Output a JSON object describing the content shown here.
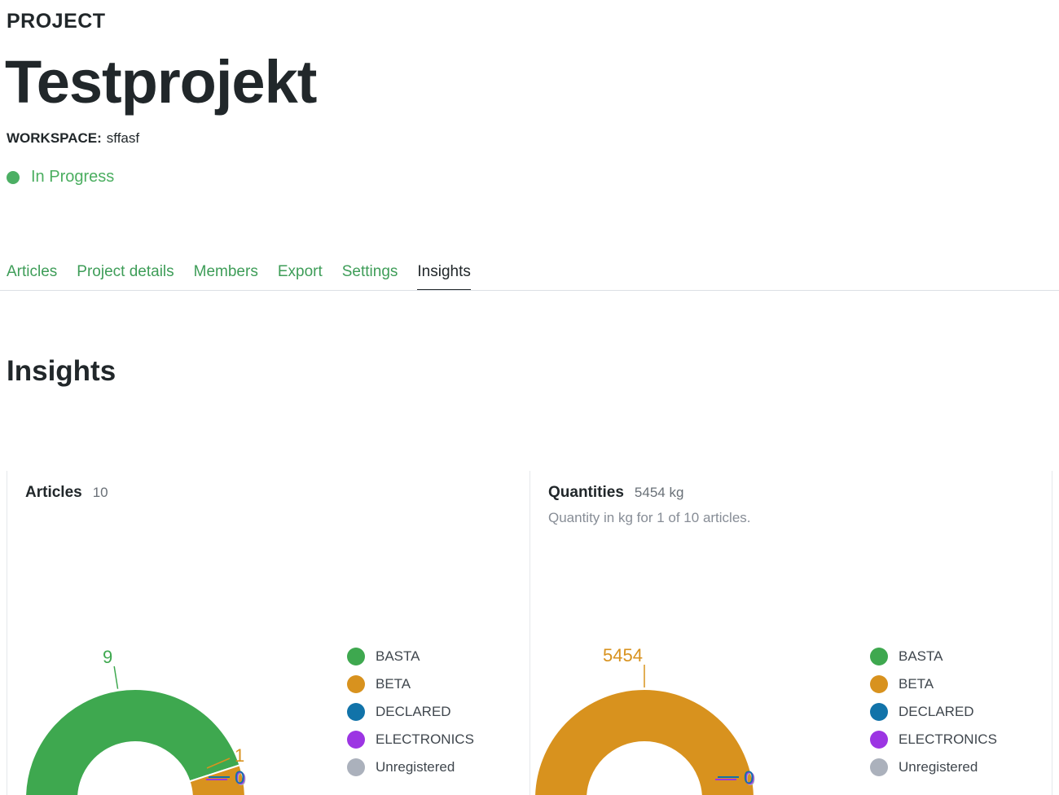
{
  "header": {
    "eyebrow": "PROJECT",
    "title": "Testprojekt",
    "workspace_label": "WORKSPACE:",
    "workspace_value": "sffasf",
    "status_label": "In Progress",
    "status_color": "#4CAF64"
  },
  "tabs": [
    {
      "label": "Articles",
      "active": false
    },
    {
      "label": "Project details",
      "active": false
    },
    {
      "label": "Members",
      "active": false
    },
    {
      "label": "Export",
      "active": false
    },
    {
      "label": "Settings",
      "active": false
    },
    {
      "label": "Insights",
      "active": true
    }
  ],
  "section": {
    "title": "Insights"
  },
  "cards": [
    {
      "title": "Articles",
      "value": "10",
      "subtitle": ""
    },
    {
      "title": "Quantities",
      "value": "5454 kg",
      "subtitle": "Quantity in kg for 1 of 10 articles."
    }
  ],
  "chart_data": [
    {
      "type": "pie",
      "variant": "half-donut",
      "title": "Articles",
      "total": 10,
      "categories": [
        "BASTA",
        "BETA",
        "DECLARED",
        "ELECTRONICS",
        "Unregistered"
      ],
      "values": [
        9,
        1,
        0,
        0,
        0
      ],
      "colors": [
        "#3EA84F",
        "#D8921E",
        "#1173A9",
        "#9C35E3",
        "#ABB1BC"
      ],
      "legend_position": "right"
    },
    {
      "type": "pie",
      "variant": "half-donut",
      "title": "Quantities",
      "unit": "kg",
      "total": 5454,
      "categories": [
        "BASTA",
        "BETA",
        "DECLARED",
        "ELECTRONICS",
        "Unregistered"
      ],
      "values": [
        0,
        5454,
        0,
        0,
        0
      ],
      "colors": [
        "#3EA84F",
        "#D8921E",
        "#1173A9",
        "#9C35E3",
        "#ABB1BC"
      ],
      "legend_position": "right"
    }
  ],
  "colors": {
    "text_dark": "#21272a",
    "link_green": "#3E9D58",
    "status_green": "#4CAF64",
    "value_gray": "#697077",
    "subtitle_gray": "#878d96",
    "border": "#e5e8eb"
  }
}
